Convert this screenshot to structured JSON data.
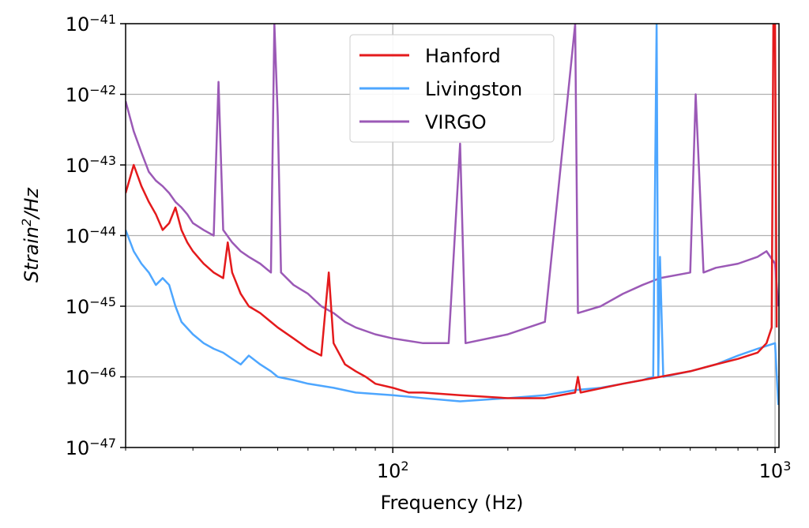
{
  "chart_data": {
    "type": "line",
    "xlabel": "Frequency (Hz)",
    "ylabel": {
      "base": "Strain",
      "sup": "2",
      "tail": "/Hz"
    },
    "x_scale": "log",
    "y_scale": "log",
    "xlim": [
      20,
      1024
    ],
    "ylim": [
      1e-47,
      1e-41
    ],
    "grid": true,
    "legend_position": "top-center",
    "x_ticks": [
      {
        "value": 100,
        "base": "10",
        "exp": "2"
      },
      {
        "value": 1000,
        "base": "10",
        "exp": "3"
      }
    ],
    "y_ticks": [
      {
        "value": 1e-41,
        "base": "10",
        "exp": "−41"
      },
      {
        "value": 1e-42,
        "base": "10",
        "exp": "−42"
      },
      {
        "value": 1e-43,
        "base": "10",
        "exp": "−43"
      },
      {
        "value": 1e-44,
        "base": "10",
        "exp": "−44"
      },
      {
        "value": 1e-45,
        "base": "10",
        "exp": "−45"
      },
      {
        "value": 1e-46,
        "base": "10",
        "exp": "−46"
      },
      {
        "value": 1e-47,
        "base": "10",
        "exp": "−47"
      }
    ],
    "series": [
      {
        "name": "Hanford",
        "color": "#e41a1c",
        "points": [
          [
            20,
            4e-44
          ],
          [
            21,
            1e-43
          ],
          [
            22,
            5e-44
          ],
          [
            23,
            3e-44
          ],
          [
            24,
            2e-44
          ],
          [
            25,
            1.2e-44
          ],
          [
            26,
            1.5e-44
          ],
          [
            27,
            2.5e-44
          ],
          [
            28,
            1.2e-44
          ],
          [
            29,
            8e-45
          ],
          [
            30,
            6e-45
          ],
          [
            32,
            4e-45
          ],
          [
            34,
            3e-45
          ],
          [
            36,
            2.5e-45
          ],
          [
            37,
            8e-45
          ],
          [
            38,
            3e-45
          ],
          [
            40,
            1.5e-45
          ],
          [
            42,
            1e-45
          ],
          [
            45,
            8e-46
          ],
          [
            48,
            6e-46
          ],
          [
            50,
            5e-46
          ],
          [
            55,
            3.5e-46
          ],
          [
            60,
            2.5e-46
          ],
          [
            65,
            2e-46
          ],
          [
            68,
            3e-45
          ],
          [
            70,
            3e-46
          ],
          [
            75,
            1.5e-46
          ],
          [
            80,
            1.2e-46
          ],
          [
            85,
            1e-46
          ],
          [
            90,
            8e-47
          ],
          [
            100,
            7e-47
          ],
          [
            110,
            6e-47
          ],
          [
            120,
            6e-47
          ],
          [
            150,
            5.5e-47
          ],
          [
            200,
            5e-47
          ],
          [
            250,
            5e-47
          ],
          [
            300,
            6e-47
          ],
          [
            305,
            1e-46
          ],
          [
            310,
            6e-47
          ],
          [
            400,
            8e-47
          ],
          [
            500,
            1e-46
          ],
          [
            600,
            1.2e-46
          ],
          [
            700,
            1.5e-46
          ],
          [
            800,
            1.8e-46
          ],
          [
            900,
            2.2e-46
          ],
          [
            950,
            3e-46
          ],
          [
            980,
            5e-46
          ],
          [
            990,
            1e-41
          ],
          [
            1000,
            1e-41
          ],
          [
            1010,
            5e-46
          ]
        ]
      },
      {
        "name": "Livingston",
        "color": "#4da6ff",
        "points": [
          [
            20,
            1.2e-44
          ],
          [
            21,
            6e-45
          ],
          [
            22,
            4e-45
          ],
          [
            23,
            3e-45
          ],
          [
            24,
            2e-45
          ],
          [
            25,
            2.5e-45
          ],
          [
            26,
            2e-45
          ],
          [
            27,
            1e-45
          ],
          [
            28,
            6e-46
          ],
          [
            30,
            4e-46
          ],
          [
            32,
            3e-46
          ],
          [
            34,
            2.5e-46
          ],
          [
            36,
            2.2e-46
          ],
          [
            38,
            1.8e-46
          ],
          [
            40,
            1.5e-46
          ],
          [
            42,
            2e-46
          ],
          [
            45,
            1.5e-46
          ],
          [
            48,
            1.2e-46
          ],
          [
            50,
            1e-46
          ],
          [
            55,
            9e-47
          ],
          [
            60,
            8e-47
          ],
          [
            70,
            7e-47
          ],
          [
            80,
            6e-47
          ],
          [
            100,
            5.5e-47
          ],
          [
            120,
            5e-47
          ],
          [
            150,
            4.5e-47
          ],
          [
            200,
            5e-47
          ],
          [
            250,
            5.5e-47
          ],
          [
            300,
            6.5e-47
          ],
          [
            350,
            7e-47
          ],
          [
            400,
            8e-47
          ],
          [
            450,
            9e-47
          ],
          [
            480,
            1e-46
          ],
          [
            490,
            1e-41
          ],
          [
            495,
            1e-46
          ],
          [
            500,
            5e-45
          ],
          [
            510,
            1e-46
          ],
          [
            600,
            1.2e-46
          ],
          [
            700,
            1.5e-46
          ],
          [
            800,
            2e-46
          ],
          [
            900,
            2.5e-46
          ],
          [
            1000,
            3e-46
          ],
          [
            1020,
            4e-47
          ]
        ]
      },
      {
        "name": "VIRGO",
        "color": "#9b59b6",
        "points": [
          [
            20,
            8e-43
          ],
          [
            21,
            3e-43
          ],
          [
            22,
            1.5e-43
          ],
          [
            23,
            8e-44
          ],
          [
            24,
            6e-44
          ],
          [
            25,
            5e-44
          ],
          [
            26,
            4e-44
          ],
          [
            27,
            3e-44
          ],
          [
            28,
            2.5e-44
          ],
          [
            29,
            2e-44
          ],
          [
            30,
            1.5e-44
          ],
          [
            32,
            1.2e-44
          ],
          [
            34,
            1e-44
          ],
          [
            35,
            1.5e-42
          ],
          [
            36,
            1.2e-44
          ],
          [
            38,
            8e-45
          ],
          [
            40,
            6e-45
          ],
          [
            42,
            5e-45
          ],
          [
            45,
            4e-45
          ],
          [
            48,
            3e-45
          ],
          [
            49,
            1e-41
          ],
          [
            50,
            5e-43
          ],
          [
            51,
            3e-45
          ],
          [
            55,
            2e-45
          ],
          [
            60,
            1.5e-45
          ],
          [
            65,
            1e-45
          ],
          [
            70,
            8e-46
          ],
          [
            75,
            6e-46
          ],
          [
            80,
            5e-46
          ],
          [
            90,
            4e-46
          ],
          [
            100,
            3.5e-46
          ],
          [
            120,
            3e-46
          ],
          [
            140,
            3e-46
          ],
          [
            150,
            2e-43
          ],
          [
            155,
            3e-46
          ],
          [
            200,
            4e-46
          ],
          [
            250,
            6e-46
          ],
          [
            300,
            1e-41
          ],
          [
            305,
            8e-46
          ],
          [
            350,
            1e-45
          ],
          [
            400,
            1.5e-45
          ],
          [
            450,
            2e-45
          ],
          [
            500,
            2.5e-45
          ],
          [
            600,
            3e-45
          ],
          [
            620,
            1e-42
          ],
          [
            650,
            3e-45
          ],
          [
            700,
            3.5e-45
          ],
          [
            800,
            4e-45
          ],
          [
            900,
            5e-45
          ],
          [
            950,
            6e-45
          ],
          [
            1000,
            4e-45
          ],
          [
            1020,
            1e-45
          ]
        ]
      }
    ]
  }
}
